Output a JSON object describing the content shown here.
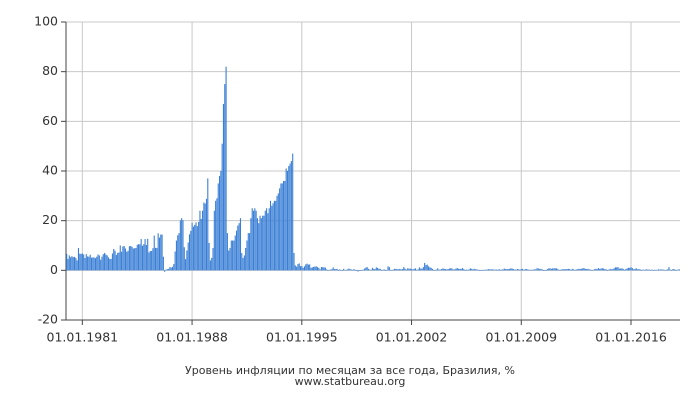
{
  "chart_data": {
    "type": "bar",
    "title": "Уровень инфляции по месяцам за все года, Бразилия, %",
    "subtitle": "www.statbureau.org",
    "color": "#3a7fd5",
    "grid": true,
    "ylim": [
      -20,
      100
    ],
    "yticks": [
      -20,
      0,
      20,
      40,
      60,
      80,
      100
    ],
    "categories": [
      null,
      null,
      null,
      null,
      null,
      null,
      null,
      null,
      null,
      null,
      null,
      null,
      "01.01.1981",
      null,
      null,
      null,
      null,
      null,
      null,
      null,
      null,
      null,
      null,
      null,
      null,
      null,
      null,
      null,
      null,
      null,
      null,
      null,
      null,
      null,
      null,
      null,
      null,
      null,
      null,
      null,
      null,
      null,
      null,
      null,
      null,
      null,
      null,
      null,
      null,
      null,
      null,
      null,
      null,
      null,
      null,
      null,
      null,
      null,
      null,
      null,
      null,
      null,
      null,
      null,
      null,
      null,
      null,
      null,
      null,
      null,
      null,
      null,
      null,
      null,
      null,
      null,
      null,
      null,
      null,
      null,
      null,
      null,
      null,
      null,
      null,
      null,
      null,
      null,
      null,
      null,
      null,
      null,
      null,
      null,
      null,
      null,
      "01.01.1988",
      null,
      null,
      null,
      null,
      null,
      null,
      null,
      null,
      null,
      null,
      null,
      null,
      null,
      null,
      null,
      null,
      null,
      null,
      null,
      null,
      null,
      null,
      null,
      null,
      null,
      null,
      null,
      null,
      null,
      null,
      null,
      null,
      null,
      null,
      null,
      null,
      null,
      null,
      null,
      null,
      null,
      null,
      null,
      null,
      null,
      null,
      null,
      null,
      null,
      null,
      null,
      null,
      null,
      null,
      null,
      null,
      null,
      null,
      null,
      null,
      null,
      null,
      null,
      null,
      null,
      null,
      null,
      null,
      null,
      null,
      null,
      null,
      null,
      null,
      null,
      null,
      null,
      null,
      null,
      null,
      null,
      null,
      null,
      "01.01.1995",
      null,
      null,
      null,
      null,
      null,
      null,
      null,
      null,
      null,
      null,
      null,
      null,
      null,
      null,
      null,
      null,
      null,
      null,
      null,
      null,
      null,
      null,
      null,
      null,
      null,
      null,
      null,
      null,
      null,
      null,
      null,
      null,
      null,
      null,
      null,
      null,
      null,
      null,
      null,
      null,
      null,
      null,
      null,
      null,
      null,
      null,
      null,
      null,
      null,
      null,
      null,
      null,
      null,
      null,
      null,
      null,
      null,
      null,
      null,
      null,
      null,
      null,
      null,
      null,
      null,
      null,
      null,
      null,
      null,
      null,
      null,
      null,
      null,
      null,
      null,
      null,
      null,
      null,
      null,
      null,
      null,
      null,
      null,
      "01.01.2002",
      null,
      null,
      null,
      null,
      null,
      null,
      null,
      null,
      null,
      null,
      null,
      null,
      null,
      null,
      null,
      null,
      null,
      null,
      null,
      null,
      null,
      null,
      null,
      null,
      null,
      null,
      null,
      null,
      null,
      null,
      null,
      null,
      null,
      null,
      null,
      null,
      null,
      null,
      null,
      null,
      null,
      null,
      null,
      null,
      null,
      null,
      null,
      null,
      null,
      null,
      null,
      null,
      null,
      null,
      null,
      null,
      null,
      null,
      null,
      null,
      null,
      null,
      null,
      null,
      null,
      null,
      null,
      null,
      null,
      null,
      null,
      null,
      null,
      null,
      null,
      null,
      null,
      null,
      null,
      null,
      null,
      null,
      null,
      "01.01.2009",
      null,
      null,
      null,
      null,
      null,
      null,
      null,
      null,
      null,
      null,
      null,
      null,
      null,
      null,
      null,
      null,
      null,
      null,
      null,
      null,
      null,
      null,
      null,
      null,
      null,
      null,
      null,
      null,
      null,
      null,
      null,
      null,
      null,
      null,
      null,
      null,
      null,
      null,
      null,
      null,
      null,
      null,
      null,
      null,
      null,
      null,
      null,
      null,
      null,
      null,
      null,
      null,
      null,
      null,
      null,
      null,
      null,
      null,
      null,
      null,
      null,
      null,
      null,
      null,
      null,
      null,
      null,
      null,
      null,
      null,
      null,
      null,
      null,
      null,
      null,
      null,
      null,
      null,
      null,
      null,
      null,
      null,
      null,
      "01.01.2016",
      null,
      null,
      null,
      null,
      null,
      null,
      null,
      null,
      null,
      null,
      null,
      null,
      null,
      null,
      null,
      null,
      null,
      null,
      null,
      null,
      null,
      null,
      null,
      null,
      null,
      null,
      null,
      null,
      null,
      null,
      null,
      null,
      null,
      null,
      null,
      null,
      null
    ],
    "values": [
      6.6,
      4.6,
      6.0,
      5.3,
      5.7,
      5.3,
      5.4,
      5.0,
      4.0,
      9.0,
      6.7,
      6.6,
      6.8,
      6.4,
      5.0,
      6.5,
      5.6,
      5.5,
      6.3,
      5.1,
      5.2,
      5.2,
      4.9,
      5.5,
      6.4,
      6.0,
      4.3,
      5.5,
      6.5,
      7.0,
      6.4,
      6.0,
      5.2,
      4.6,
      4.6,
      6.8,
      8.6,
      7.9,
      6.2,
      7.0,
      7.2,
      10.0,
      7.5,
      9.6,
      9.8,
      8.8,
      7.5,
      7.9,
      9.7,
      9.8,
      9.5,
      8.8,
      8.9,
      9.0,
      10.3,
      10.5,
      10.5,
      12.6,
      9.9,
      10.5,
      12.6,
      10.2,
      12.7,
      7.2,
      7.8,
      7.8,
      8.9,
      14.0,
      9.1,
      9.0,
      14.9,
      13.2,
      14.4,
      14.4,
      5.5,
      -0.6,
      0.3,
      0.5,
      0.6,
      1.3,
      1.1,
      1.4,
      2.5,
      7.6,
      12.0,
      14.1,
      15.0,
      20.1,
      21.0,
      20.2,
      9.3,
      4.5,
      8.0,
      11.2,
      14.5,
      15.9,
      19.1,
      17.6,
      18.3,
      19.3,
      17.8,
      19.5,
      24.0,
      20.7,
      24.0,
      27.3,
      26.9,
      28.8,
      37,
      11,
      4,
      5,
      9,
      24,
      28,
      29,
      35,
      38,
      40,
      51,
      67,
      75,
      82,
      15,
      8,
      9,
      12,
      12,
      12,
      14,
      16,
      18,
      19,
      21,
      7,
      5,
      6,
      9,
      12,
      15,
      15,
      21,
      25,
      24,
      25,
      24,
      21,
      19,
      22,
      21,
      22,
      22,
      24,
      25,
      23,
      25,
      28,
      26,
      27,
      28,
      28,
      30,
      31,
      33,
      35,
      35,
      36,
      36,
      41,
      40,
      42,
      43,
      44,
      47,
      7,
      2,
      1.5,
      2.5,
      2.8,
      1.7,
      1.7,
      1.0,
      1.6,
      2.4,
      2.7,
      2.3,
      2.4,
      1.0,
      1.2,
      1.4,
      1.5,
      1.6,
      1.3,
      1.0,
      0.4,
      1.3,
      1.3,
      1.2,
      1.1,
      0.4,
      0.1,
      0.2,
      0.3,
      0.5,
      1.2,
      0.5,
      0.5,
      0.6,
      0.1,
      0.4,
      0.1,
      0.0,
      0.6,
      0.2,
      0.2,
      0.4,
      0.7,
      0.5,
      0.3,
      0.2,
      0.5,
      0.0,
      -0.1,
      -0.5,
      0.0,
      0.0,
      -0.1,
      0.3,
      0.7,
      1.1,
      1.3,
      0.6,
      0.3,
      0.2,
      1.0,
      0.6,
      0.5,
      1.2,
      1.0,
      0.6,
      0.6,
      0.1,
      0.2,
      0.4,
      0.0,
      0.2,
      1.6,
      1.3,
      0.2,
      0.1,
      0.3,
      0.6,
      0.6,
      0.5,
      0.4,
      0.6,
      0.4,
      0.5,
      1.3,
      0.7,
      0.3,
      0.8,
      0.7,
      0.7,
      0.5,
      0.4,
      0.6,
      0.8,
      0.2,
      0.4,
      1.2,
      0.7,
      0.7,
      1.3,
      3.0,
      2.1,
      2.3,
      1.6,
      1.2,
      1.0,
      0.6,
      -0.2,
      0.2,
      0.3,
      0.8,
      0.3,
      0.3,
      0.5,
      0.8,
      0.6,
      0.5,
      0.4,
      0.5,
      0.7,
      0.9,
      0.7,
      0.3,
      0.4,
      0.7,
      0.9,
      0.6,
      0.6,
      0.6,
      0.9,
      0.5,
      0.0,
      0.3,
      0.2,
      0.4,
      0.8,
      0.6,
      0.4,
      0.6,
      0.4,
      0.4,
      0.2,
      0.1,
      -0.2,
      0.2,
      0.1,
      0.2,
      0.3,
      0.3,
      0.5,
      0.4,
      0.4,
      0.4,
      0.3,
      0.3,
      0.3,
      0.2,
      0.5,
      0.2,
      0.3,
      0.4,
      0.7,
      0.5,
      0.5,
      0.5,
      0.6,
      0.8,
      0.7,
      0.5,
      0.3,
      0.3,
      0.5,
      0.4,
      0.3,
      0.5,
      0.6,
      0.2,
      0.5,
      0.5,
      0.4,
      0.2,
      0.2,
      0.2,
      0.3,
      0.4,
      0.4,
      0.8,
      0.8,
      0.5,
      0.6,
      0.4,
      0.0,
      0.0,
      0.0,
      0.5,
      0.8,
      0.8,
      0.6,
      0.8,
      0.8,
      0.8,
      0.8,
      0.5,
      0.2,
      0.2,
      0.4,
      0.5,
      0.4,
      0.5,
      0.5,
      0.6,
      0.5,
      0.2,
      0.6,
      0.4,
      0.1,
      0.4,
      0.4,
      0.6,
      0.6,
      0.6,
      0.8,
      0.9,
      0.6,
      0.5,
      0.6,
      0.4,
      0.3,
      0.0,
      0.2,
      0.4,
      0.6,
      0.5,
      0.9,
      0.6,
      0.7,
      0.9,
      0.7,
      0.5,
      0.4,
      0.0,
      0.3,
      0.6,
      0.4,
      0.5,
      0.8,
      1.2,
      1.2,
      1.3,
      0.7,
      0.7,
      0.8,
      0.6,
      0.2,
      0.5,
      0.8,
      1.0,
      1.0,
      1.3,
      0.9,
      0.4,
      0.6,
      0.8,
      0.4,
      0.5,
      0.4,
      0.1,
      0.3,
      0.2,
      0.3,
      0.4,
      0.3,
      0.3,
      0.1,
      0.3,
      -0.2,
      0.2,
      0.2,
      0.2,
      0.4,
      0.3,
      0.4,
      0.3,
      0.3,
      0.1,
      0.2,
      0.4,
      1.3,
      0.3,
      -0.1,
      0.5,
      0.5,
      -0.2,
      0.2,
      0.3,
      0.4
    ]
  }
}
